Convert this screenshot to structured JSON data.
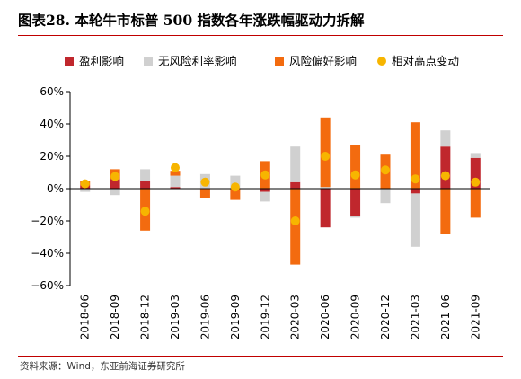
{
  "figure": {
    "title": "图表28. 本轮牛市标普 500 指数各年涨跌幅驱动力拆解",
    "source": "资料来源：Wind，东亚前海证券研究所"
  },
  "chart_data": {
    "type": "bar",
    "stacked": true,
    "categories": [
      "2018-06",
      "2018-09",
      "2018-12",
      "2019-03",
      "2019-06",
      "2019-09",
      "2019-12",
      "2020-03",
      "2020-06",
      "2020-09",
      "2020-12",
      "2021-03",
      "2021-06",
      "2021-09"
    ],
    "series": [
      {
        "name": "盈利影响",
        "kind": "bar",
        "color": "#c0272d",
        "values": [
          2,
          6,
          5,
          1,
          0,
          0,
          -2,
          4,
          -24,
          -17,
          0,
          -3,
          26,
          19
        ]
      },
      {
        "name": "无风险利率影响",
        "kind": "bar",
        "color": "#d0d0d0",
        "values": [
          -2,
          -4,
          7,
          7,
          9,
          8,
          -6,
          22,
          1,
          -1,
          -9,
          -33,
          10,
          3
        ]
      },
      {
        "name": "风险偏好影响",
        "kind": "bar",
        "color": "#f36b0f",
        "values": [
          3,
          6,
          -26,
          3,
          -6,
          -7,
          17,
          -47,
          43,
          27,
          21,
          41,
          -28,
          -18
        ]
      },
      {
        "name": "相对高点变动",
        "kind": "dot",
        "color": "#f7b500",
        "values": [
          3,
          7.5,
          -14,
          13,
          4,
          1,
          8.5,
          -20,
          20,
          8.5,
          11.5,
          6,
          8,
          4
        ]
      }
    ],
    "ylim": [
      -60,
      60
    ],
    "yticks": [
      -60,
      -40,
      -20,
      0,
      20,
      40,
      60
    ],
    "ytick_labels": [
      "−60%",
      "−40%",
      "−20%",
      "0%",
      "20%",
      "40%",
      "60%"
    ],
    "legend_position": "top",
    "grid": false
  }
}
